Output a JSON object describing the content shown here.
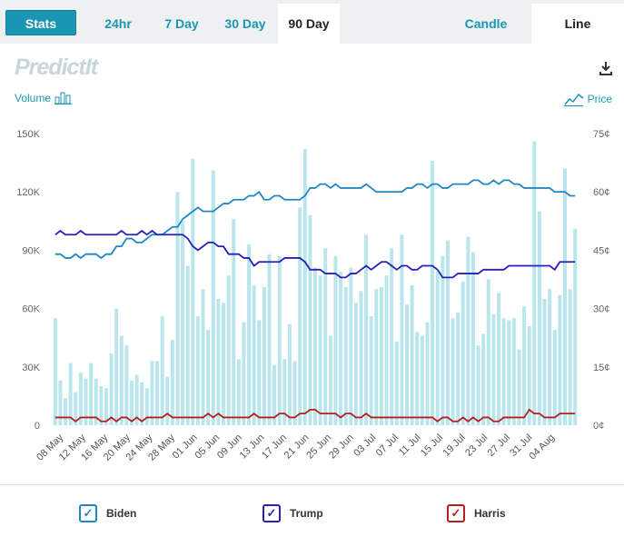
{
  "toolbar": {
    "stats_label": "Stats",
    "tabs": [
      "24hr",
      "7 Day",
      "30 Day",
      "90 Day"
    ],
    "active_tab": "90 Day",
    "candle_label": "Candle",
    "line_label": "Line"
  },
  "brand": {
    "logo_text": "PredictIt"
  },
  "controls": {
    "volume_label": "Volume",
    "price_label": "Price"
  },
  "colors": {
    "accent": "#1a96b4",
    "bars": "#b9e5ec",
    "biden": "#1f88c4",
    "trump": "#2a1fb5",
    "harris": "#b51f1f"
  },
  "chart_data": {
    "type": "line",
    "x_tick_labels": [
      "08 May",
      "12 May",
      "16 May",
      "20 May",
      "24 May",
      "28 May",
      "01 Jun",
      "05 Jun",
      "09 Jun",
      "13 Jun",
      "17 Jun",
      "21 Jun",
      "25 Jun",
      "29 Jun",
      "03 Jul",
      "07 Jul",
      "11 Jul",
      "15 Jul",
      "19 Jul",
      "23 Jul",
      "27 Jul",
      "31 Jul",
      "04 Aug"
    ],
    "y_left": {
      "label": "Volume",
      "ticks": [
        "0",
        "30K",
        "60K",
        "90K",
        "120K",
        "150K"
      ],
      "min": 0,
      "max": 150000
    },
    "y_right": {
      "label": "Price",
      "ticks": [
        "0¢",
        "15¢",
        "30¢",
        "45¢",
        "60¢",
        "75¢"
      ],
      "min": 0,
      "max": 75
    },
    "volume": [
      55000,
      23000,
      14000,
      32000,
      17000,
      27000,
      24000,
      32000,
      24000,
      20000,
      19000,
      37000,
      60000,
      46000,
      41000,
      23000,
      26000,
      22000,
      19000,
      33000,
      33000,
      56000,
      25000,
      44000,
      120000,
      105000,
      82000,
      137000,
      56000,
      70000,
      49000,
      131000,
      65000,
      63000,
      77000,
      106000,
      34000,
      53000,
      93000,
      72000,
      54000,
      71000,
      88000,
      31000,
      87000,
      34000,
      52000,
      33000,
      112000,
      142000,
      108000,
      81000,
      77000,
      91000,
      46000,
      87000,
      79000,
      71000,
      81000,
      63000,
      69000,
      98000,
      56000,
      70000,
      71000,
      77000,
      91000,
      43000,
      98000,
      62000,
      72000,
      48000,
      46000,
      53000,
      136000,
      79000,
      87000,
      95000,
      55000,
      58000,
      74000,
      97000,
      89000,
      41000,
      47000,
      75000,
      57000,
      68000,
      55000,
      54000,
      55000,
      39000,
      61000,
      51000,
      146000,
      110000,
      65000,
      70000,
      49000,
      67000,
      132000,
      70000,
      101000
    ],
    "series": [
      {
        "name": "Biden",
        "values": [
          44,
          44,
          43,
          43,
          44,
          43,
          44,
          44,
          44,
          43,
          44,
          44,
          46,
          46,
          48,
          48,
          47,
          47,
          48,
          49,
          49,
          49,
          50,
          51,
          51,
          53,
          54,
          55,
          56,
          55,
          55,
          55,
          56,
          57,
          57,
          58,
          58,
          58,
          59,
          59,
          60,
          58,
          58,
          59,
          59,
          58,
          58,
          58,
          58,
          59,
          61,
          61,
          62,
          62,
          61,
          62,
          61,
          61,
          61,
          61,
          61,
          62,
          61,
          60,
          60,
          60,
          60,
          60,
          60,
          61,
          61,
          62,
          62,
          61,
          62,
          62,
          61,
          61,
          62,
          62,
          62,
          62,
          63,
          63,
          62,
          62,
          63,
          62,
          63,
          63,
          62,
          62,
          61,
          61,
          61,
          61,
          61,
          61,
          60,
          60,
          60,
          59,
          59
        ]
      },
      {
        "name": "Trump",
        "values": [
          49,
          50,
          49,
          49,
          49,
          50,
          49,
          49,
          49,
          49,
          49,
          49,
          49,
          50,
          49,
          49,
          49,
          50,
          49,
          50,
          49,
          49,
          49,
          49,
          49,
          49,
          48,
          46,
          45,
          46,
          47,
          47,
          46,
          46,
          44,
          44,
          44,
          43,
          43,
          41,
          42,
          42,
          42,
          42,
          42,
          43,
          43,
          43,
          43,
          42,
          40,
          40,
          40,
          39,
          39,
          39,
          38,
          38,
          39,
          39,
          40,
          41,
          40,
          41,
          42,
          42,
          41,
          40,
          41,
          41,
          40,
          40,
          41,
          41,
          41,
          40,
          38,
          38,
          38,
          39,
          39,
          39,
          39,
          39,
          40,
          40,
          40,
          40,
          40,
          41,
          41,
          41,
          41,
          41,
          41,
          41,
          41,
          41,
          40,
          42,
          42,
          42,
          42
        ]
      },
      {
        "name": "Harris",
        "values": [
          2,
          2,
          2,
          2,
          1,
          2,
          2,
          2,
          2,
          1,
          1,
          2,
          1,
          2,
          2,
          1,
          2,
          1,
          2,
          2,
          2,
          2,
          3,
          2,
          2,
          2,
          2,
          2,
          2,
          2,
          3,
          2,
          3,
          2,
          2,
          2,
          2,
          2,
          2,
          3,
          2,
          2,
          2,
          2,
          3,
          3,
          2,
          2,
          3,
          3,
          4,
          4,
          3,
          3,
          3,
          3,
          2,
          3,
          3,
          2,
          2,
          3,
          2,
          2,
          2,
          2,
          2,
          2,
          2,
          2,
          2,
          2,
          2,
          2,
          2,
          1,
          2,
          2,
          1,
          1,
          2,
          1,
          2,
          1,
          2,
          2,
          1,
          1,
          2,
          2,
          2,
          2,
          2,
          4,
          3,
          3,
          2,
          2,
          2,
          3,
          3,
          3,
          3
        ]
      }
    ]
  }
}
